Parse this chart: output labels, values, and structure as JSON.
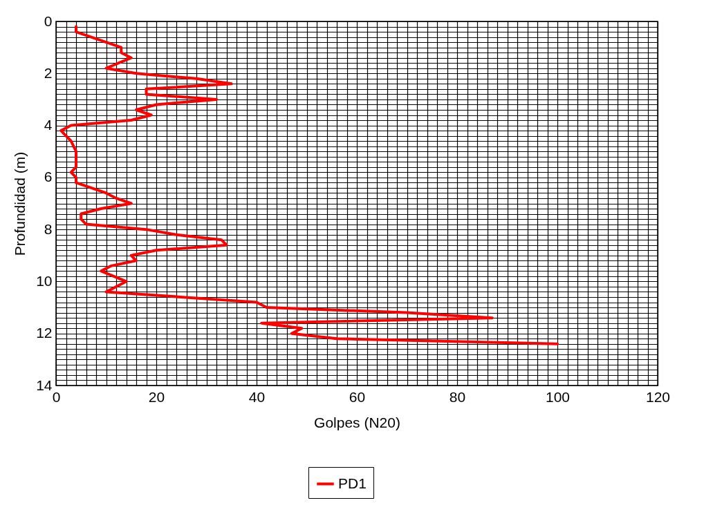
{
  "chart_data": {
    "type": "line",
    "xlabel": "Golpes (N20)",
    "ylabel": "Profundidad (m)",
    "xlim": [
      0,
      120
    ],
    "ylim": [
      14,
      0
    ],
    "xticks": [
      0,
      {
        "value": 2,
        "label": null
      },
      {
        "value": 4,
        "label": null
      },
      {
        "value": 6,
        "label": null
      },
      {
        "value": 8,
        "label": null
      },
      {
        "value": 10,
        "label": null
      },
      {
        "value": 12,
        "label": null
      },
      {
        "value": 14,
        "label": null
      },
      {
        "value": 16,
        "label": null
      },
      {
        "value": 18,
        "label": null
      },
      20,
      {
        "value": 22,
        "label": null
      },
      {
        "value": 24,
        "label": null
      },
      {
        "value": 26,
        "label": null
      },
      {
        "value": 28,
        "label": null
      },
      {
        "value": 30,
        "label": null
      },
      {
        "value": 32,
        "label": null
      },
      {
        "value": 34,
        "label": null
      },
      {
        "value": 36,
        "label": null
      },
      {
        "value": 38,
        "label": null
      },
      40,
      {
        "value": 42,
        "label": null
      },
      {
        "value": 44,
        "label": null
      },
      {
        "value": 46,
        "label": null
      },
      {
        "value": 48,
        "label": null
      },
      {
        "value": 50,
        "label": null
      },
      {
        "value": 52,
        "label": null
      },
      {
        "value": 54,
        "label": null
      },
      {
        "value": 56,
        "label": null
      },
      {
        "value": 58,
        "label": null
      },
      60,
      {
        "value": 62,
        "label": null
      },
      {
        "value": 64,
        "label": null
      },
      {
        "value": 66,
        "label": null
      },
      {
        "value": 68,
        "label": null
      },
      {
        "value": 70,
        "label": null
      },
      {
        "value": 72,
        "label": null
      },
      {
        "value": 74,
        "label": null
      },
      {
        "value": 76,
        "label": null
      },
      {
        "value": 78,
        "label": null
      },
      80,
      {
        "value": 82,
        "label": null
      },
      {
        "value": 84,
        "label": null
      },
      {
        "value": 86,
        "label": null
      },
      {
        "value": 88,
        "label": null
      },
      {
        "value": 90,
        "label": null
      },
      {
        "value": 92,
        "label": null
      },
      {
        "value": 94,
        "label": null
      },
      {
        "value": 96,
        "label": null
      },
      {
        "value": 98,
        "label": null
      },
      100,
      {
        "value": 102,
        "label": null
      },
      {
        "value": 104,
        "label": null
      },
      {
        "value": 106,
        "label": null
      },
      {
        "value": 108,
        "label": null
      },
      {
        "value": 110,
        "label": null
      },
      {
        "value": 112,
        "label": null
      },
      {
        "value": 114,
        "label": null
      },
      {
        "value": 116,
        "label": null
      },
      {
        "value": 118,
        "label": null
      },
      120
    ],
    "yticks": [
      0,
      {
        "value": 0.2,
        "label": null
      },
      {
        "value": 0.4,
        "label": null
      },
      {
        "value": 0.6,
        "label": null
      },
      {
        "value": 0.8,
        "label": null
      },
      {
        "value": 1,
        "label": null
      },
      {
        "value": 1.2,
        "label": null
      },
      {
        "value": 1.4,
        "label": null
      },
      {
        "value": 1.6,
        "label": null
      },
      {
        "value": 1.8,
        "label": null
      },
      2,
      {
        "value": 2.2,
        "label": null
      },
      {
        "value": 2.4,
        "label": null
      },
      {
        "value": 2.6,
        "label": null
      },
      {
        "value": 2.8,
        "label": null
      },
      {
        "value": 3,
        "label": null
      },
      {
        "value": 3.2,
        "label": null
      },
      {
        "value": 3.4,
        "label": null
      },
      {
        "value": 3.6,
        "label": null
      },
      {
        "value": 3.8,
        "label": null
      },
      4,
      {
        "value": 4.2,
        "label": null
      },
      {
        "value": 4.4,
        "label": null
      },
      {
        "value": 4.6,
        "label": null
      },
      {
        "value": 4.8,
        "label": null
      },
      {
        "value": 5,
        "label": null
      },
      {
        "value": 5.2,
        "label": null
      },
      {
        "value": 5.4,
        "label": null
      },
      {
        "value": 5.6,
        "label": null
      },
      {
        "value": 5.8,
        "label": null
      },
      6,
      {
        "value": 6.2,
        "label": null
      },
      {
        "value": 6.4,
        "label": null
      },
      {
        "value": 6.6,
        "label": null
      },
      {
        "value": 6.8,
        "label": null
      },
      {
        "value": 7,
        "label": null
      },
      {
        "value": 7.2,
        "label": null
      },
      {
        "value": 7.4,
        "label": null
      },
      {
        "value": 7.6,
        "label": null
      },
      {
        "value": 7.8,
        "label": null
      },
      8,
      {
        "value": 8.2,
        "label": null
      },
      {
        "value": 8.4,
        "label": null
      },
      {
        "value": 8.6,
        "label": null
      },
      {
        "value": 8.8,
        "label": null
      },
      {
        "value": 9,
        "label": null
      },
      {
        "value": 9.2,
        "label": null
      },
      {
        "value": 9.4,
        "label": null
      },
      {
        "value": 9.6,
        "label": null
      },
      {
        "value": 9.8,
        "label": null
      },
      10,
      {
        "value": 10.2,
        "label": null
      },
      {
        "value": 10.4,
        "label": null
      },
      {
        "value": 10.6,
        "label": null
      },
      {
        "value": 10.8,
        "label": null
      },
      {
        "value": 11,
        "label": null
      },
      {
        "value": 11.2,
        "label": null
      },
      {
        "value": 11.4,
        "label": null
      },
      {
        "value": 11.6,
        "label": null
      },
      {
        "value": 11.8,
        "label": null
      },
      12,
      {
        "value": 12.2,
        "label": null
      },
      {
        "value": 12.4,
        "label": null
      },
      {
        "value": 12.6,
        "label": null
      },
      {
        "value": 12.8,
        "label": null
      },
      {
        "value": 13,
        "label": null
      },
      {
        "value": 13.2,
        "label": null
      },
      {
        "value": 13.4,
        "label": null
      },
      {
        "value": 13.6,
        "label": null
      },
      {
        "value": 13.8,
        "label": null
      },
      14
    ],
    "grid": true,
    "legend": "bottom",
    "line_style": "solid",
    "series": [
      {
        "name": "PD1",
        "color": "#ff0000",
        "x": [
          4,
          4,
          13,
          13,
          15,
          10,
          16,
          28,
          35,
          18,
          18,
          32,
          20,
          16,
          19,
          15,
          3,
          1,
          2,
          3,
          4,
          4,
          3,
          4,
          4,
          10,
          12,
          15,
          9,
          5,
          5,
          6,
          18,
          24,
          33,
          34,
          20,
          15,
          16,
          11,
          9,
          14,
          10,
          40,
          42,
          70,
          87,
          41,
          49,
          47,
          56,
          100
        ],
        "values": [
          0.2,
          0.4,
          1.0,
          1.2,
          1.4,
          1.8,
          2.0,
          2.2,
          2.4,
          2.6,
          2.8,
          3.0,
          3.2,
          3.4,
          3.6,
          3.8,
          4.0,
          4.2,
          4.4,
          4.6,
          5.0,
          5.6,
          5.8,
          6.0,
          6.2,
          6.6,
          6.8,
          7.0,
          7.2,
          7.4,
          7.6,
          7.8,
          8.0,
          8.2,
          8.4,
          8.6,
          8.8,
          9.0,
          9.2,
          9.4,
          9.6,
          10.0,
          10.4,
          10.8,
          11.0,
          11.2,
          11.4,
          11.6,
          11.8,
          12.0,
          12.2,
          12.4
        ]
      }
    ]
  }
}
